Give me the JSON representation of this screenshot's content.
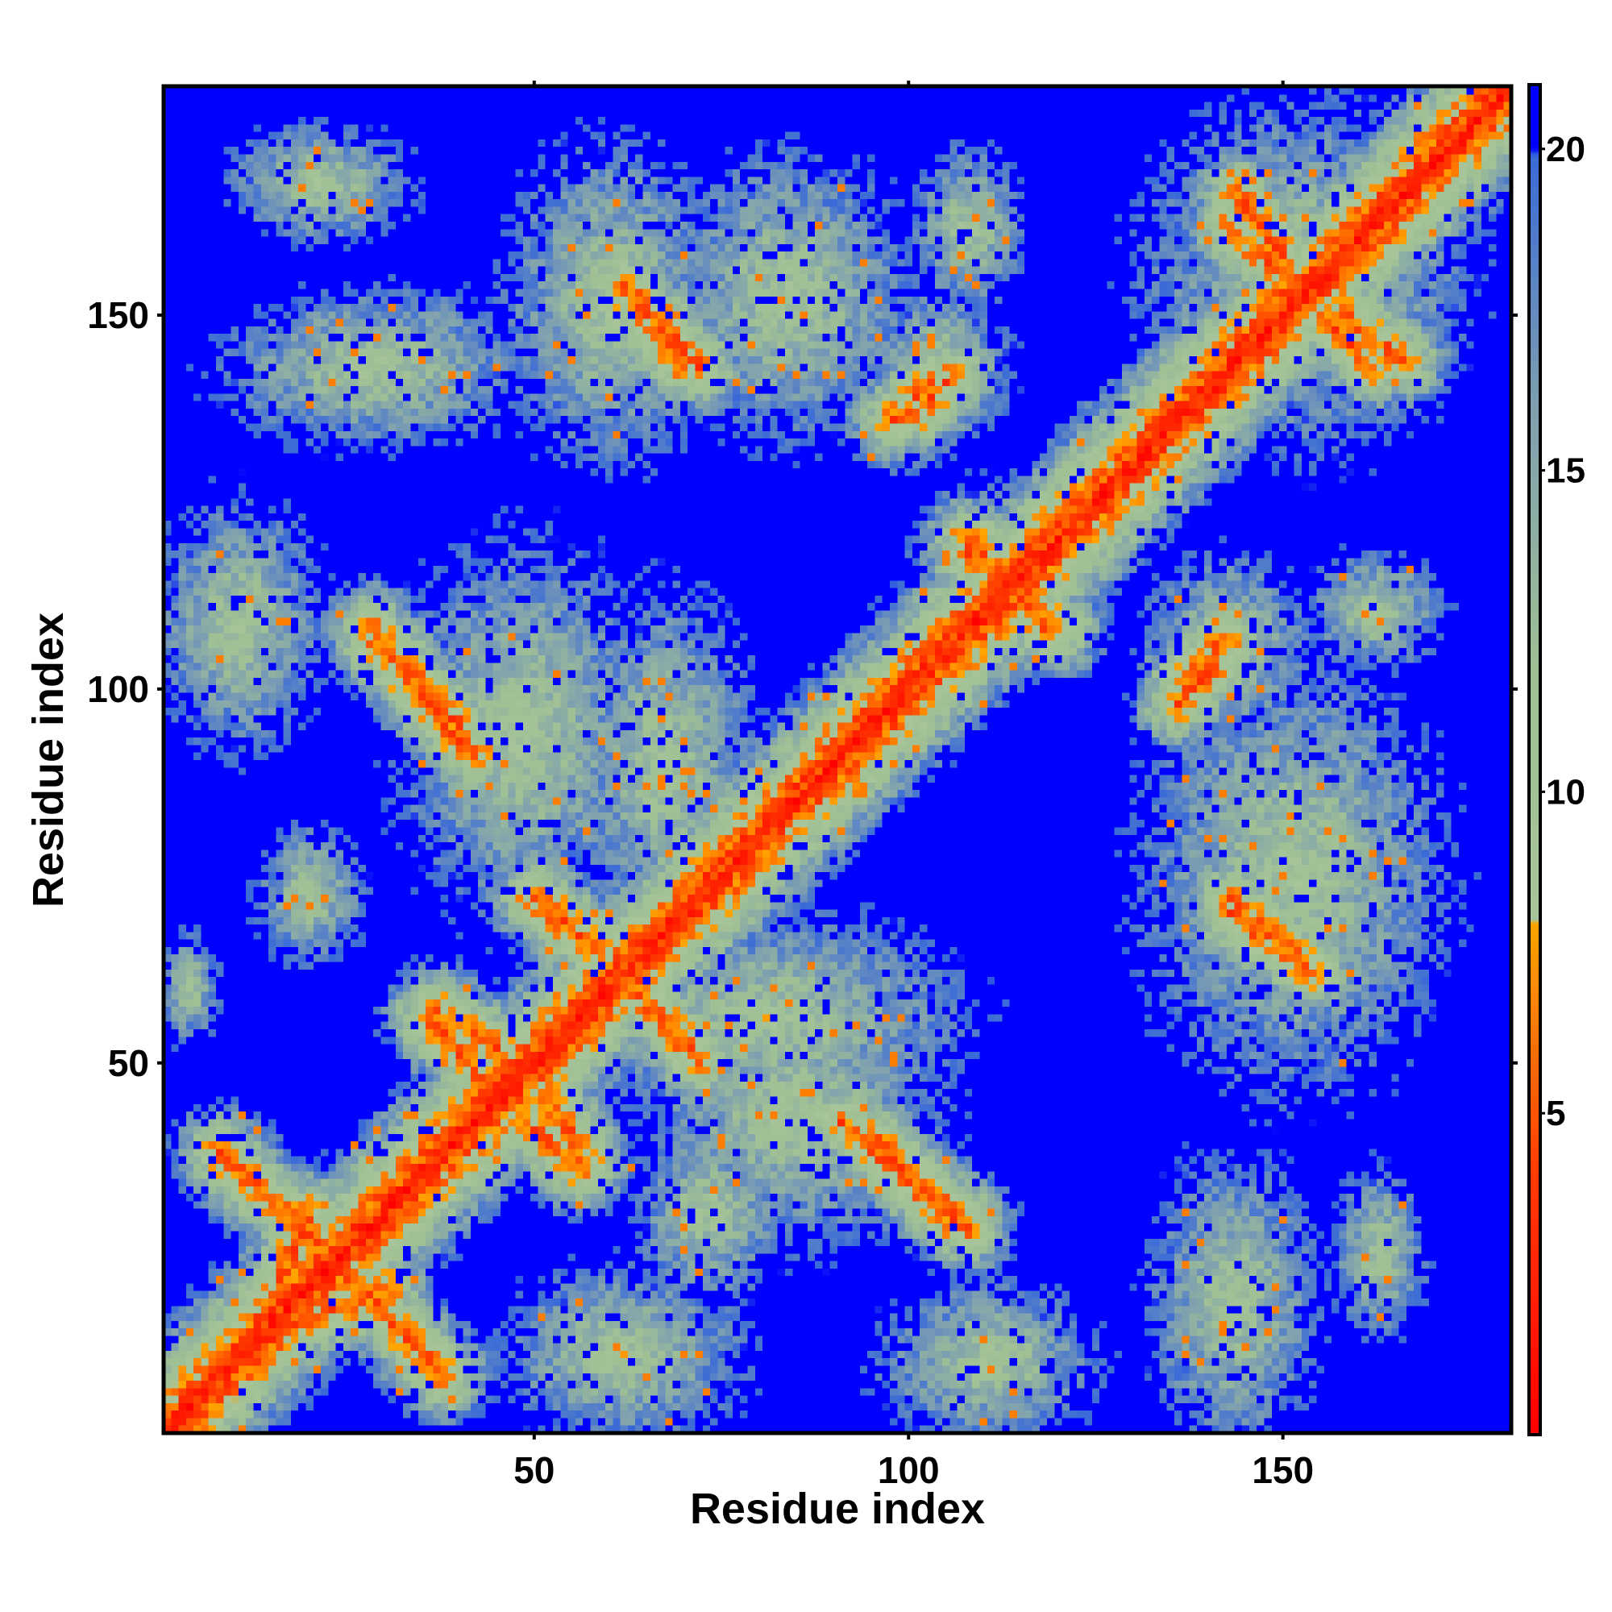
{
  "chart_data": {
    "type": "heatmap",
    "title": "",
    "xlabel": "Residue index",
    "ylabel": "Residue index",
    "xlim": [
      1,
      180
    ],
    "ylim": [
      1,
      180
    ],
    "n_residues": 180,
    "x_ticks": [
      50,
      100,
      150
    ],
    "y_ticks": [
      50,
      100,
      150
    ],
    "x_tick_labels": [
      "50",
      "100",
      "150"
    ],
    "y_tick_labels": [
      "50",
      "100",
      "150"
    ],
    "colorbar": {
      "range": [
        0,
        21
      ],
      "ticks": [
        5,
        10,
        15,
        20
      ],
      "tick_labels": [
        "5",
        "10",
        "15",
        "20"
      ],
      "stops": [
        {
          "value": 0,
          "color": "#ff0000"
        },
        {
          "value": 4,
          "color": "#ff3a00"
        },
        {
          "value": 7,
          "color": "#ff8c00"
        },
        {
          "value": 8,
          "color": "#ffa500"
        },
        {
          "value": 8.01,
          "color": "#a8c49a"
        },
        {
          "value": 12,
          "color": "#9fbf95"
        },
        {
          "value": 16,
          "color": "#7ea0b0"
        },
        {
          "value": 19.9,
          "color": "#3a6ad8"
        },
        {
          "value": 20,
          "color": "#0000ff"
        },
        {
          "value": 21,
          "color": "#0000ff"
        }
      ]
    },
    "main_diagonal": {
      "from": 1,
      "to": 180
    },
    "contact_bands": [
      {
        "x": [
          8,
          25
        ],
        "y": [
          38,
          22
        ],
        "kind": "antiparallel"
      },
      {
        "x": [
          52,
          57
        ],
        "y": [
          45,
          37
        ],
        "kind": "antiparallel"
      },
      {
        "x": [
          36,
          44
        ],
        "y": [
          56,
          47
        ],
        "kind": "antiparallel"
      },
      {
        "x": [
          50,
          59
        ],
        "y": [
          72,
          64
        ],
        "kind": "antiparallel"
      },
      {
        "x": [
          63,
          71
        ],
        "y": [
          60,
          52
        ],
        "kind": "antiparallel"
      },
      {
        "x": [
          28,
          40
        ],
        "y": [
          108,
          95
        ],
        "kind": "antiparallel"
      },
      {
        "x": [
          91,
          106
        ],
        "y": [
          42,
          29
        ],
        "kind": "antiparallel"
      },
      {
        "x": [
          62,
          70
        ],
        "y": [
          154,
          143
        ],
        "kind": "antiparallel"
      },
      {
        "x": [
          144,
          150
        ],
        "y": [
          166,
          158
        ],
        "kind": "antiparallel"
      },
      {
        "x": [
          155,
          162
        ],
        "y": [
          150,
          143
        ],
        "kind": "antiparallel"
      },
      {
        "x": [
          143,
          153
        ],
        "y": [
          72,
          63
        ],
        "kind": "antiparallel"
      },
      {
        "x": [
          108,
          111
        ],
        "y": [
          120,
          116
        ],
        "kind": "antiparallel"
      },
      {
        "x": [
          115,
          118
        ],
        "y": [
          112,
          108
        ],
        "kind": "antiparallel"
      },
      {
        "x": [
          15,
          20
        ],
        "y": [
          18,
          30
        ],
        "kind": "parallel"
      },
      {
        "x": [
          98,
          103
        ],
        "y": [
          136,
          141
        ],
        "kind": "parallel"
      },
      {
        "x": [
          137,
          142
        ],
        "y": [
          101,
          106
        ],
        "kind": "parallel"
      }
    ],
    "contact_patches": [
      {
        "x": [
          11,
          32
        ],
        "y": [
          161,
          174
        ]
      },
      {
        "x": [
          11,
          46
        ],
        "y": [
          134,
          152
        ]
      },
      {
        "x": [
          1,
          20
        ],
        "y": [
          94,
          123
        ]
      },
      {
        "x": [
          1,
          7
        ],
        "y": [
          54,
          66
        ]
      },
      {
        "x": [
          48,
          73
        ],
        "y": [
          133,
          170
        ]
      },
      {
        "x": [
          70,
          98
        ],
        "y": [
          136,
          169
        ]
      },
      {
        "x": [
          102,
          114
        ],
        "y": [
          152,
          171
        ]
      },
      {
        "x": [
          96,
          112
        ],
        "y": [
          134,
          152
        ]
      },
      {
        "x": [
          34,
          63
        ],
        "y": [
          72,
          116
        ]
      },
      {
        "x": [
          57,
          78
        ],
        "y": [
          70,
          110
        ]
      },
      {
        "x": [
          14,
          26
        ],
        "y": [
          65,
          80
        ]
      },
      {
        "x": [
          58,
          104
        ],
        "y": [
          44,
          68
        ]
      },
      {
        "x": [
          68,
          102
        ],
        "y": [
          28,
          58
        ]
      },
      {
        "x": [
          65,
          82
        ],
        "y": [
          20,
          40
        ]
      },
      {
        "x": [
          48,
          76
        ],
        "y": [
          1,
          21
        ]
      },
      {
        "x": [
          98,
          123
        ],
        "y": [
          1,
          19
        ]
      },
      {
        "x": [
          134,
          153
        ],
        "y": [
          1,
          35
        ]
      },
      {
        "x": [
          158,
          168
        ],
        "y": [
          15,
          34
        ]
      },
      {
        "x": [
          134,
          169
        ],
        "y": [
          50,
          100
        ]
      },
      {
        "x": [
          133,
          152
        ],
        "y": [
          95,
          116
        ]
      },
      {
        "x": [
          155,
          170
        ],
        "y": [
          104,
          117
        ]
      },
      {
        "x": [
          102,
          121
        ],
        "y": [
          104,
          125
        ]
      },
      {
        "x": [
          134,
          172
        ],
        "y": [
          135,
          175
        ]
      }
    ]
  }
}
